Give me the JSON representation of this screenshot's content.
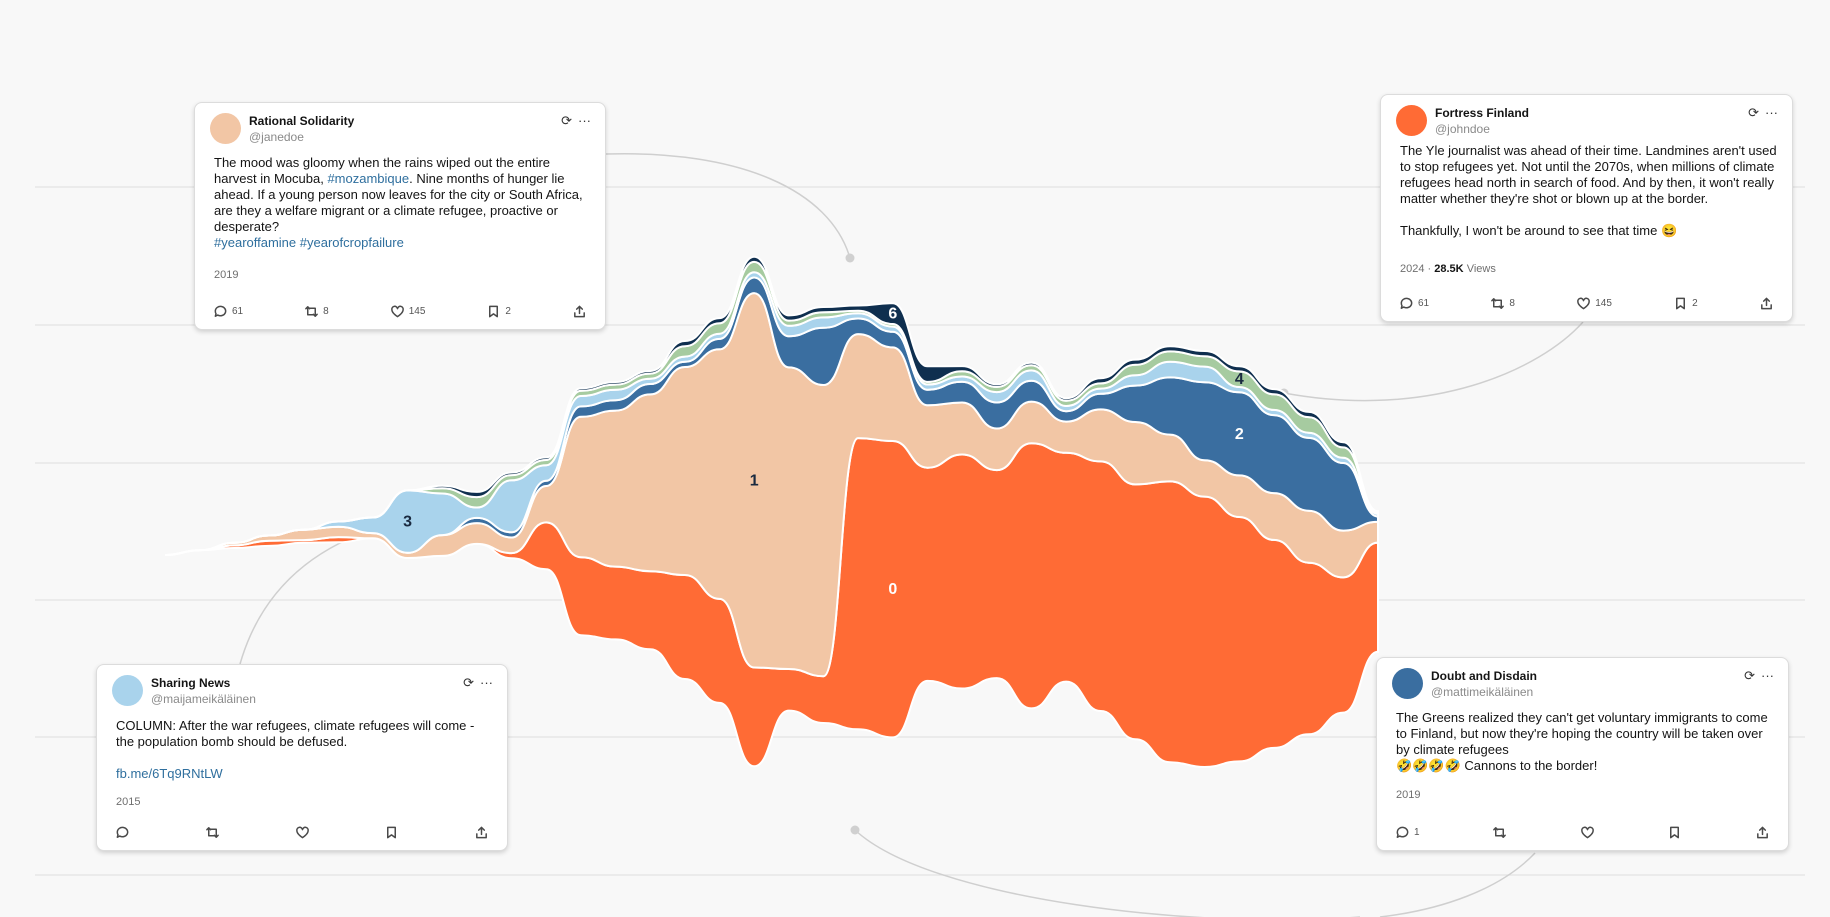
{
  "chart_data": {
    "type": "area",
    "layout": "streamgraph",
    "xlabel": "",
    "ylabel": "",
    "series": [
      {
        "label": "0",
        "color": "#ff6b35",
        "values": [
          0,
          0,
          0.5,
          1,
          0.5,
          1,
          0,
          0,
          0,
          0,
          1,
          9,
          15,
          14,
          15,
          20,
          20,
          19,
          8,
          9,
          56,
          57,
          41,
          45,
          40,
          51,
          44,
          48,
          49,
          54,
          52,
          47,
          40,
          33,
          26,
          21
        ]
      },
      {
        "label": "1",
        "color": "#f2c6a5",
        "values": [
          0,
          0,
          0.5,
          1,
          2,
          2,
          1,
          1,
          4,
          4,
          3,
          7,
          27,
          30,
          34,
          40,
          48,
          72,
          58,
          56,
          20,
          18,
          12,
          10,
          8,
          8,
          6,
          10,
          12,
          9,
          7,
          8,
          9,
          10,
          9,
          4
        ]
      },
      {
        "label": "2",
        "color": "#3a6ea0",
        "values": [
          0,
          0,
          0,
          0,
          0,
          0,
          0,
          0,
          0,
          1,
          1,
          1,
          2,
          2,
          2,
          1,
          2,
          3,
          6,
          11,
          3,
          3,
          3,
          4,
          5,
          4,
          2,
          3,
          7,
          11,
          15,
          16,
          15,
          14,
          13,
          1
        ]
      },
      {
        "label": "3",
        "color": "#a9d3ec",
        "values": [
          0,
          0,
          0,
          0,
          0,
          1,
          3,
          12,
          8,
          2,
          10,
          3,
          2,
          2,
          1,
          1,
          1,
          1,
          2,
          2,
          1,
          1,
          1,
          1,
          2,
          2,
          1,
          1,
          2,
          3,
          3,
          1,
          1,
          1,
          1,
          0.5
        ]
      },
      {
        "label": "4",
        "color": "#a6cba0",
        "values": [
          0,
          0,
          0,
          0,
          0,
          0,
          0,
          0,
          1,
          2,
          1,
          1,
          1,
          1,
          1,
          2,
          2,
          2,
          1,
          1,
          0.5,
          0.5,
          0.5,
          1,
          1,
          1,
          1,
          1,
          2,
          2,
          2,
          3,
          3,
          3,
          2,
          0.3
        ]
      },
      {
        "label": "6",
        "color": "#0f2f4f",
        "values": [
          0,
          0,
          0,
          0,
          0,
          0,
          0,
          0,
          0.5,
          1,
          0.5,
          0.5,
          0.5,
          0.5,
          0.5,
          1,
          1,
          1,
          1,
          1,
          1,
          4,
          3,
          1,
          0.5,
          0.5,
          0.5,
          1,
          1,
          1,
          1,
          1,
          1,
          1,
          1,
          0.2
        ]
      }
    ]
  },
  "tweets": [
    {
      "name": "Rational Solidarity",
      "handle": "@janedoe",
      "avatar_color": "#f2c6a5",
      "text_parts": [
        "The mood was gloomy when the rains wiped out the entire harvest in Mocuba, ",
        "#mozambique",
        ". Nine months of hunger lie ahead. If a young person now leaves for the city or South Africa, are they a welfare migrant or a climate refugee, proactive or desperate?",
        "#yearoffamine #yearofcropfailure"
      ],
      "year": "2019",
      "views": "",
      "views_label": "",
      "counts": {
        "reply": "61",
        "retweet": "8",
        "like": "145",
        "bookmark": "2"
      }
    },
    {
      "name": "Fortress Finland",
      "handle": "@johndoe",
      "avatar_color": "#ff6b35",
      "text_parts": [
        "The Yle journalist was ahead of their time. Landmines aren't used to stop refugees yet. Not until the 2070s, when millions of climate refugees head north in search of food. And by then, it won't really matter whether they're shot or blown up at the border.",
        "Thankfully, I won't be around to see that time 😆"
      ],
      "year": "2024",
      "views": "28.5K",
      "views_label": "Views",
      "counts": {
        "reply": "61",
        "retweet": "8",
        "like": "145",
        "bookmark": "2"
      }
    },
    {
      "name": "Sharing News",
      "handle": "@maijameikäläinen",
      "avatar_color": "#a9d3ec",
      "text_parts": [
        "COLUMN: After the war refugees, climate refugees will come - the population bomb should be defused.",
        "fb.me/6Tq9RNtLW"
      ],
      "year": "2015",
      "views": "",
      "views_label": "",
      "counts": {
        "reply": "",
        "retweet": "",
        "like": "",
        "bookmark": ""
      }
    },
    {
      "name": "Doubt and Disdain",
      "handle": "@mattimeikäläinen",
      "avatar_color": "#3a6ea0",
      "text_parts": [
        "The Greens realized they can't get voluntary immigrants to come to Finland, but now they're hoping the country will be taken over by climate refugees",
        "🤣🤣🤣🤣 Cannons to the border!"
      ],
      "year": "2019",
      "views": "",
      "views_label": "",
      "counts": {
        "reply": "1",
        "retweet": "",
        "like": "",
        "bookmark": ""
      }
    }
  ],
  "icons": {
    "refresh": "refresh-icon",
    "more": "more-icon",
    "reply": "reply-icon",
    "retweet": "retweet-icon",
    "like": "heart-icon",
    "bookmark": "bookmark-icon",
    "share": "share-icon"
  }
}
